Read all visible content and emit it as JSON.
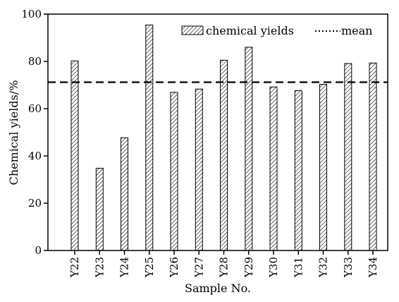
{
  "chart_data": {
    "type": "bar",
    "categories": [
      "Y22",
      "Y23",
      "Y24",
      "Y25",
      "Y26",
      "Y27",
      "Y28",
      "Y29",
      "Y30",
      "Y31",
      "Y32",
      "Y33",
      "Y34"
    ],
    "series": [
      {
        "name": "chemical  yields",
        "values": [
          80.2,
          34.8,
          47.7,
          95.4,
          66.9,
          68.3,
          80.5,
          86.0,
          69.2,
          67.6,
          70.3,
          79.1,
          79.3
        ]
      }
    ],
    "mean": {
      "label": "mean",
      "value": 71.2
    },
    "xlabel": "Sample No.",
    "ylabel": "Chemical  yields/%",
    "ylim": [
      0,
      100
    ],
    "yticks": [
      0,
      20,
      40,
      60,
      80,
      100
    ],
    "legend_position": "top-right",
    "grid": false,
    "colors": {
      "bar_fill": "#ffffff",
      "bar_hatch": "#000000",
      "mean_line": "#000000"
    }
  }
}
